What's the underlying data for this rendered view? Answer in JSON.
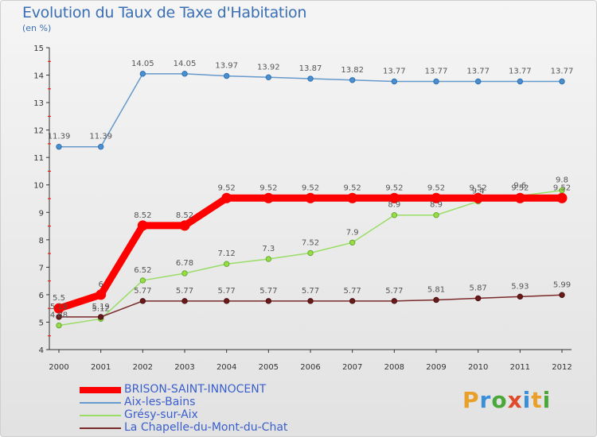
{
  "title": "Evolution du Taux de Taxe d'Habitation",
  "subtitle": "(en %)",
  "chart_data": {
    "type": "line",
    "title": "Evolution du Taux de Taxe d'Habitation",
    "ylabel": "(en %)",
    "xlabel": "",
    "ylim": [
      4,
      15
    ],
    "yticks": [
      "4",
      "5",
      "6",
      "7",
      "8",
      "9",
      "10",
      "11",
      "12",
      "13",
      "14",
      "15"
    ],
    "x": [
      "2000",
      "2001",
      "2002",
      "2003",
      "2004",
      "2005",
      "2006",
      "2007",
      "2008",
      "2009",
      "2010",
      "2011",
      "2012"
    ],
    "series": [
      {
        "name": "BRISON-SAINT-INNOCENT",
        "color": "#ff0000",
        "values": [
          5.5,
          6,
          8.52,
          8.52,
          9.52,
          9.52,
          9.52,
          9.52,
          9.52,
          9.52,
          9.52,
          9.52,
          9.52
        ],
        "labels": [
          "5.5",
          "6",
          "8.52",
          "8.52",
          "9.52",
          "9.52",
          "9.52",
          "9.52",
          "9.52",
          "9.52",
          "9.52",
          "9.52",
          "9.52"
        ]
      },
      {
        "name": "Aix-les-Bains",
        "color": "#6699cc",
        "values": [
          11.39,
          11.39,
          14.05,
          14.05,
          13.97,
          13.92,
          13.87,
          13.82,
          13.77,
          13.77,
          13.77,
          13.77,
          13.77
        ],
        "labels": [
          "11.39",
          "11.39",
          "14.05",
          "14.05",
          "13.97",
          "13.92",
          "13.87",
          "13.82",
          "13.77",
          "13.77",
          "13.77",
          "13.77",
          "13.77"
        ]
      },
      {
        "name": "Grésy-sur-Aix",
        "color": "#99dd66",
        "values": [
          4.88,
          5.12,
          6.52,
          6.78,
          7.12,
          7.3,
          7.52,
          7.9,
          8.9,
          8.9,
          9.4,
          9.6,
          9.8
        ],
        "labels": [
          "4.88",
          "5.12",
          "6.52",
          "6.78",
          "7.12",
          "7.3",
          "7.52",
          "7.9",
          "8.9",
          "8.9",
          "9.4",
          "9.6",
          "9.8"
        ]
      },
      {
        "name": "La Chapelle-du-Mont-du-Chat",
        "color": "#7a2a2a",
        "values": [
          5.19,
          5.19,
          5.77,
          5.77,
          5.77,
          5.77,
          5.77,
          5.77,
          5.77,
          5.81,
          5.87,
          5.93,
          5.99
        ],
        "labels": [
          "5.19",
          "5.19",
          "5.77",
          "5.77",
          "5.77",
          "5.77",
          "5.77",
          "5.77",
          "5.77",
          "5.81",
          "5.87",
          "5.93",
          "5.99"
        ]
      }
    ]
  },
  "logo": {
    "letters": [
      "P",
      "r",
      "o",
      "x",
      "i",
      "t",
      "i"
    ],
    "colors": [
      "#e8a02a",
      "#3a8fd8",
      "#4aa83a",
      "#e04a2a",
      "#3a8fd8",
      "#e8a02a",
      "#4aa83a"
    ]
  }
}
